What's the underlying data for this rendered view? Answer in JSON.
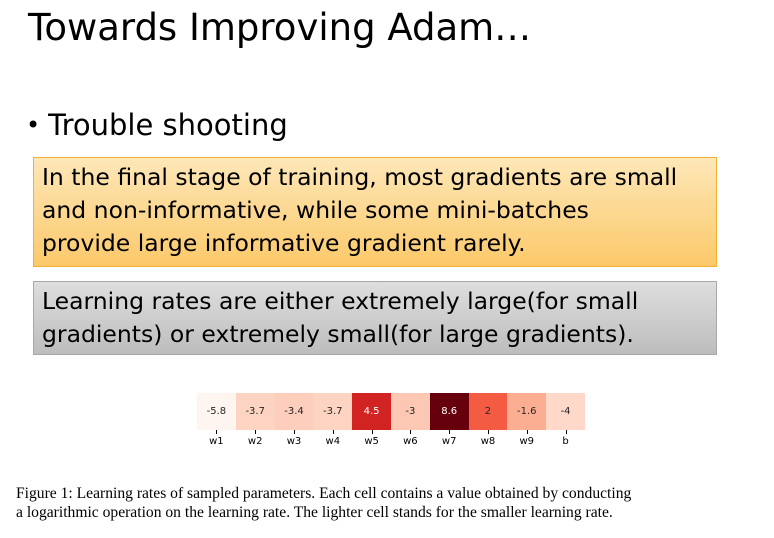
{
  "slide": {
    "title": "Towards Improving Adam…",
    "bullet": "Trouble shooting",
    "box_orange": {
      "lines": [
        "In the final stage of training, most gradients are small",
        "and non-informative, while some mini-batches",
        "provide large informative gradient rarely."
      ]
    },
    "box_gray": {
      "lines": [
        "Learning rates are either extremely large(for small",
        "gradients) or extremely small(for large gradients)."
      ]
    },
    "caption": {
      "lines": [
        "Figure 1: Learning rates of sampled parameters. Each cell contains a value obtained by conducting",
        "a logarithmic operation on the learning rate. The lighter cell stands for the smaller learning rate."
      ]
    }
  },
  "chart_data": {
    "type": "heatmap",
    "categories": [
      "w1",
      "w2",
      "w3",
      "w4",
      "w5",
      "w6",
      "w7",
      "w8",
      "w9",
      "b"
    ],
    "cell_labels": [
      "-5.8",
      "-3.7",
      "-3.4",
      "-3.7",
      "4.5",
      "-3",
      "8.6",
      "2",
      "-1.6",
      "-4"
    ],
    "values": [
      -5.8,
      -3.7,
      -3.4,
      -3.7,
      4.5,
      -3,
      8.6,
      2,
      -1.6,
      -4
    ],
    "colormap": "Reds",
    "value_range": [
      -5.8,
      8.6
    ]
  }
}
